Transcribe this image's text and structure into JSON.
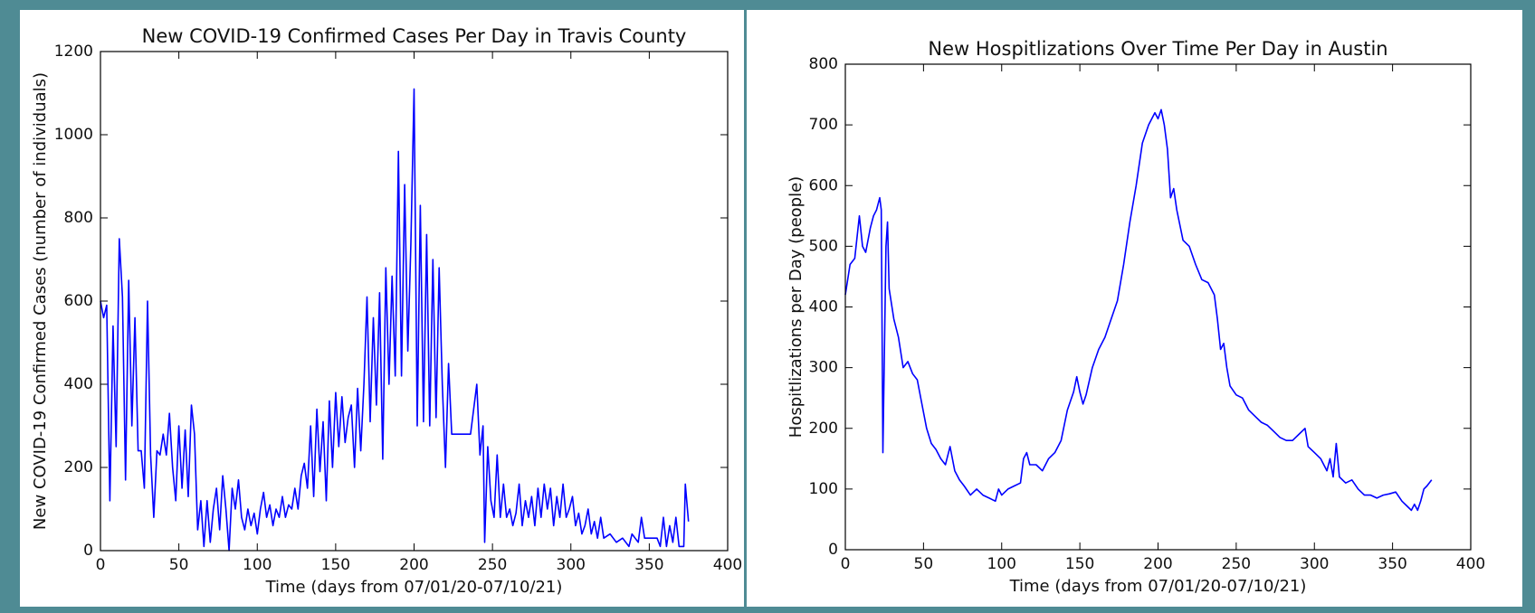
{
  "chart_data": [
    {
      "type": "line",
      "title": "New COVID-19 Confirmed Cases Per Day in Travis County",
      "x_label": "Time (days from 07/01/20-07/10/21)",
      "y_label": "New COVID-19 Confirmed Cases (number of individuals)",
      "xlim": [
        0,
        400
      ],
      "ylim": [
        0,
        1200
      ],
      "xticks": [
        0,
        50,
        100,
        150,
        200,
        250,
        300,
        350,
        400
      ],
      "yticks": [
        0,
        200,
        400,
        600,
        800,
        1000,
        1200
      ],
      "x": [
        0,
        2,
        4,
        6,
        8,
        10,
        12,
        14,
        16,
        18,
        20,
        22,
        24,
        26,
        28,
        30,
        32,
        34,
        36,
        38,
        40,
        42,
        44,
        46,
        48,
        50,
        52,
        54,
        56,
        58,
        60,
        62,
        64,
        66,
        68,
        70,
        72,
        74,
        76,
        78,
        80,
        82,
        84,
        86,
        88,
        90,
        92,
        94,
        96,
        98,
        100,
        102,
        104,
        106,
        108,
        110,
        112,
        114,
        116,
        118,
        120,
        122,
        124,
        126,
        128,
        130,
        132,
        134,
        136,
        138,
        140,
        142,
        144,
        146,
        148,
        150,
        152,
        154,
        156,
        158,
        160,
        162,
        164,
        166,
        168,
        170,
        172,
        174,
        176,
        178,
        180,
        182,
        184,
        186,
        188,
        190,
        192,
        194,
        196,
        198,
        200,
        202,
        204,
        206,
        208,
        210,
        212,
        214,
        216,
        218,
        220,
        222,
        224,
        226,
        230,
        236,
        240,
        242,
        244,
        245,
        247,
        249,
        251,
        253,
        255,
        257,
        259,
        261,
        263,
        265,
        267,
        269,
        271,
        273,
        275,
        277,
        279,
        281,
        283,
        285,
        287,
        289,
        291,
        293,
        295,
        297,
        299,
        301,
        303,
        305,
        307,
        309,
        311,
        313,
        315,
        317,
        319,
        321,
        325,
        329,
        333,
        337,
        339,
        343,
        345,
        347,
        355,
        357,
        359,
        361,
        363,
        365,
        367,
        369,
        372,
        373,
        375
      ],
      "series": [
        {
          "color": "#0000ff",
          "values": [
            600,
            560,
            590,
            120,
            540,
            250,
            750,
            610,
            170,
            650,
            300,
            560,
            240,
            240,
            150,
            600,
            230,
            80,
            240,
            230,
            280,
            230,
            330,
            200,
            120,
            300,
            150,
            290,
            130,
            350,
            280,
            50,
            120,
            10,
            120,
            20,
            100,
            150,
            50,
            180,
            100,
            0,
            150,
            100,
            170,
            80,
            50,
            100,
            60,
            90,
            40,
            100,
            140,
            80,
            110,
            60,
            100,
            80,
            130,
            80,
            110,
            100,
            150,
            100,
            180,
            210,
            150,
            300,
            130,
            340,
            190,
            310,
            120,
            360,
            200,
            380,
            250,
            370,
            260,
            320,
            350,
            200,
            390,
            240,
            400,
            610,
            310,
            560,
            350,
            620,
            220,
            680,
            400,
            660,
            420,
            960,
            420,
            880,
            480,
            740,
            1110,
            300,
            830,
            310,
            760,
            300,
            700,
            320,
            680,
            400,
            200,
            450,
            280,
            280,
            280,
            280,
            400,
            230,
            300,
            20,
            250,
            120,
            80,
            230,
            80,
            160,
            80,
            100,
            60,
            90,
            160,
            60,
            120,
            80,
            130,
            60,
            150,
            80,
            160,
            100,
            150,
            60,
            130,
            80,
            160,
            80,
            100,
            130,
            60,
            90,
            40,
            60,
            100,
            40,
            70,
            30,
            80,
            30,
            40,
            20,
            30,
            10,
            40,
            20,
            80,
            30,
            30,
            10,
            80,
            10,
            60,
            20,
            80,
            10,
            10,
            160,
            70
          ]
        }
      ]
    },
    {
      "type": "line",
      "title": "New Hospitlizations Over Time Per Day in Austin",
      "x_label": "Time (days from 07/01/20-07/10/21)",
      "y_label": "Hospitlizations per Day (people)",
      "xlim": [
        0,
        400
      ],
      "ylim": [
        0,
        800
      ],
      "xticks": [
        0,
        50,
        100,
        150,
        200,
        250,
        300,
        350,
        400
      ],
      "yticks": [
        0,
        100,
        200,
        300,
        400,
        500,
        600,
        700,
        800
      ],
      "x": [
        0,
        3,
        6,
        9,
        11,
        13,
        16,
        18,
        20,
        22,
        23,
        24,
        26,
        27,
        28,
        31,
        34,
        37,
        40,
        43,
        46,
        49,
        52,
        55,
        58,
        61,
        64,
        67,
        70,
        73,
        76,
        80,
        84,
        88,
        92,
        96,
        98,
        100,
        104,
        108,
        112,
        114,
        116,
        118,
        122,
        126,
        130,
        134,
        138,
        142,
        146,
        148,
        150,
        152,
        154,
        158,
        162,
        166,
        170,
        174,
        178,
        182,
        186,
        190,
        194,
        198,
        200,
        202,
        204,
        206,
        208,
        210,
        212,
        216,
        220,
        224,
        228,
        232,
        236,
        238,
        240,
        242,
        244,
        246,
        250,
        254,
        258,
        262,
        266,
        270,
        274,
        278,
        282,
        286,
        290,
        294,
        296,
        300,
        304,
        308,
        310,
        312,
        314,
        316,
        320,
        324,
        328,
        332,
        336,
        340,
        344,
        348,
        352,
        356,
        360,
        362,
        364,
        366,
        368,
        370,
        372,
        375
      ],
      "series": [
        {
          "color": "#0000ff",
          "values": [
            420,
            470,
            480,
            550,
            500,
            490,
            530,
            550,
            560,
            580,
            560,
            160,
            500,
            540,
            430,
            380,
            350,
            300,
            310,
            290,
            280,
            240,
            200,
            175,
            165,
            150,
            140,
            170,
            130,
            115,
            105,
            90,
            100,
            90,
            85,
            80,
            100,
            90,
            100,
            105,
            110,
            150,
            160,
            140,
            140,
            130,
            150,
            160,
            180,
            230,
            260,
            285,
            260,
            240,
            255,
            300,
            330,
            350,
            380,
            410,
            470,
            540,
            600,
            670,
            700,
            720,
            710,
            725,
            700,
            660,
            580,
            595,
            560,
            510,
            500,
            470,
            445,
            440,
            420,
            380,
            330,
            340,
            300,
            270,
            255,
            250,
            230,
            220,
            210,
            205,
            195,
            185,
            180,
            180,
            190,
            200,
            170,
            160,
            150,
            130,
            150,
            120,
            175,
            120,
            110,
            115,
            100,
            90,
            90,
            85,
            90,
            92,
            95,
            80,
            70,
            65,
            75,
            65,
            80,
            100,
            105,
            115
          ]
        }
      ]
    }
  ]
}
